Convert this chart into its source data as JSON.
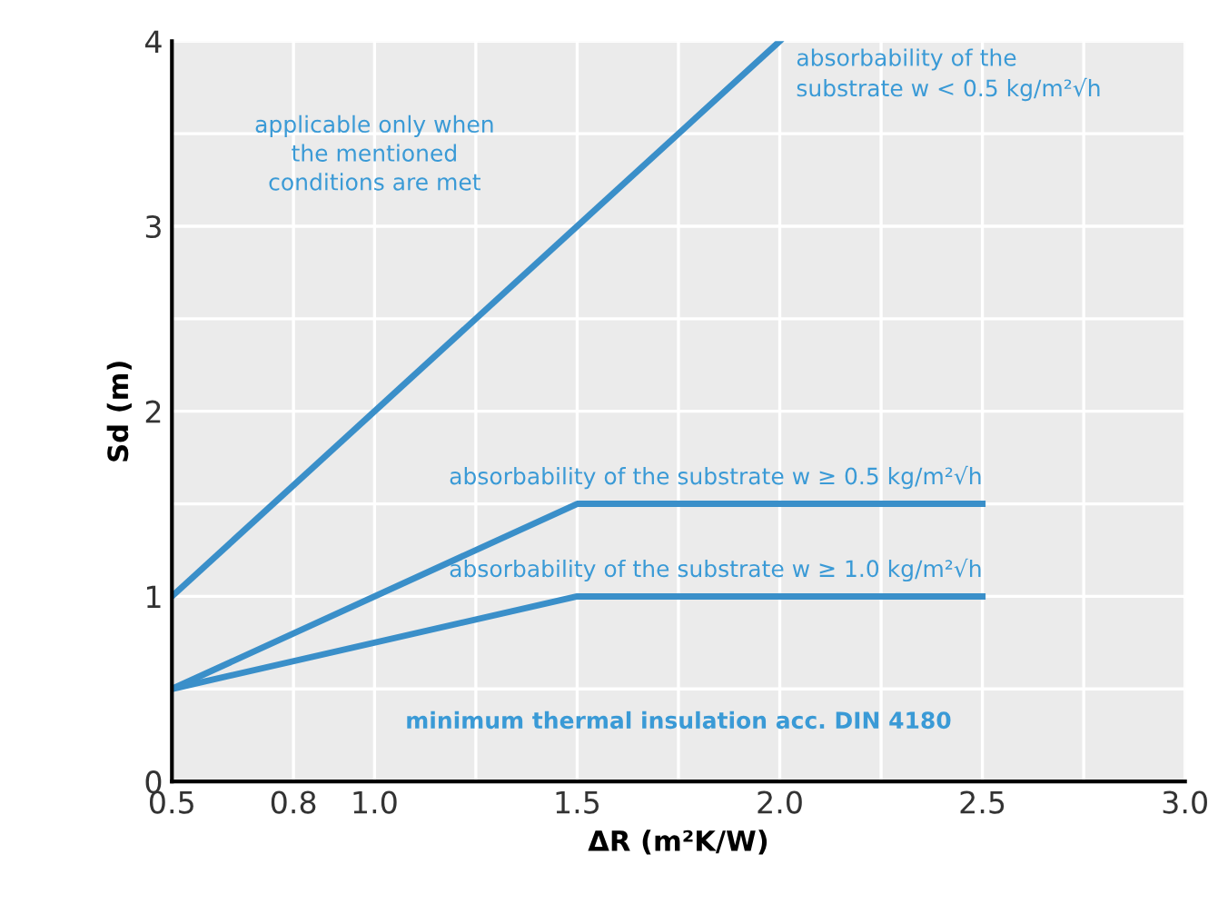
{
  "chart_data": {
    "type": "line",
    "xlabel": "ΔR (m²K/W)",
    "ylabel": "Sd (m)",
    "series": [
      {
        "name": "absorbability of the\nsubstrate w < 0.5 kg/m²√h",
        "color": "#3a8fc9",
        "x": [
          0.5,
          2.0
        ],
        "values": [
          1,
          4
        ]
      },
      {
        "name": "absorbability of the substrate w ≥ 0.5 kg/m²√h",
        "color": "#3a8fc9",
        "x": [
          0.5,
          1.5,
          2.5
        ],
        "values": [
          0.5,
          1.5,
          1.5
        ]
      },
      {
        "name": "absorbability of the substrate w ≥ 1.0 kg/m²√h",
        "color": "#3a8fc9",
        "x": [
          0.5,
          1.5,
          2.5
        ],
        "values": [
          0.5,
          1.0,
          1.0
        ]
      }
    ],
    "annotations": [
      "applicable only when\nthe mentioned\nconditions are met",
      "minimum thermal insulation acc. DIN 4180"
    ],
    "xlim": [
      0.5,
      3.0
    ],
    "ylim": [
      0,
      4
    ],
    "xticks": [
      0.5,
      0.8,
      {
        "value": 1,
        "label": "1.0"
      },
      {
        "value": 1.25,
        "label": null
      },
      1.5,
      {
        "value": 1.75,
        "label": null
      },
      {
        "value": 2,
        "label": "2.0"
      },
      {
        "value": 2.25,
        "label": null
      },
      2.5,
      {
        "value": 2.75,
        "label": null
      },
      {
        "value": 3,
        "label": "3.0"
      }
    ],
    "yticks": [
      0,
      {
        "value": 0.5,
        "label": null
      },
      1,
      {
        "value": 1.5,
        "label": null
      },
      2,
      {
        "value": 2.5,
        "label": null
      },
      3,
      {
        "value": 3.5,
        "label": null
      },
      4
    ],
    "grid": true,
    "legend": false,
    "marker": "none",
    "line_style": "solid"
  }
}
